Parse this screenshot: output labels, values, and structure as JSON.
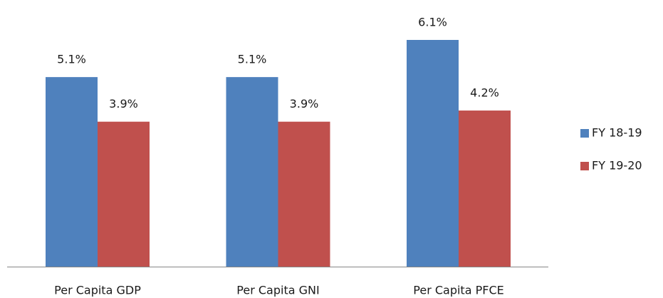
{
  "chart_data": {
    "type": "bar",
    "categories": [
      "Per Capita GDP",
      "Per Capita GNI",
      "Per Capita PFCE"
    ],
    "series": [
      {
        "name": "FY 18-19",
        "color": "#4f81bd",
        "values": [
          5.1,
          5.1,
          6.1
        ],
        "value_labels": [
          "5.1%",
          "5.1%",
          "6.1%"
        ]
      },
      {
        "name": "FY 19-20",
        "color": "#c0504d",
        "values": [
          3.9,
          3.9,
          4.2
        ],
        "value_labels": [
          "3.9%",
          "3.9%",
          "4.2%"
        ]
      }
    ],
    "legend": "right"
  }
}
